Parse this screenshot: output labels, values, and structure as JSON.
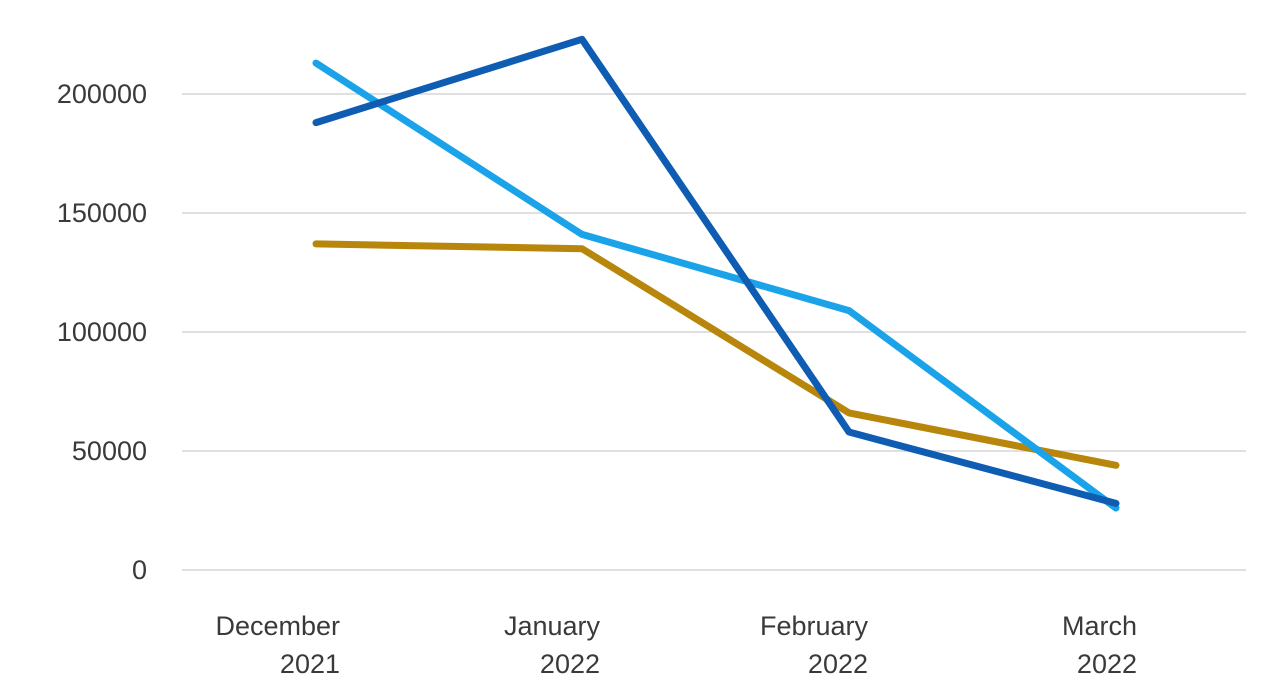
{
  "chart_data": {
    "type": "line",
    "title": "",
    "xlabel": "",
    "ylabel": "",
    "categories": [
      [
        "December",
        "2021"
      ],
      [
        "January",
        "2022"
      ],
      [
        "February",
        "2022"
      ],
      [
        "March",
        "2022"
      ]
    ],
    "yticks": [
      0,
      50000,
      100000,
      150000,
      200000
    ],
    "ylim": [
      0,
      225000
    ],
    "grid": true,
    "legend": "none",
    "series": [
      {
        "color": "#1aa3e8",
        "values": [
          213000,
          141000,
          109000,
          26000
        ]
      },
      {
        "color": "#0f5cb3",
        "values": [
          188000,
          223000,
          58000,
          28000
        ]
      },
      {
        "color": "#b7860b",
        "values": [
          137000,
          135000,
          66000,
          44000
        ]
      }
    ]
  }
}
